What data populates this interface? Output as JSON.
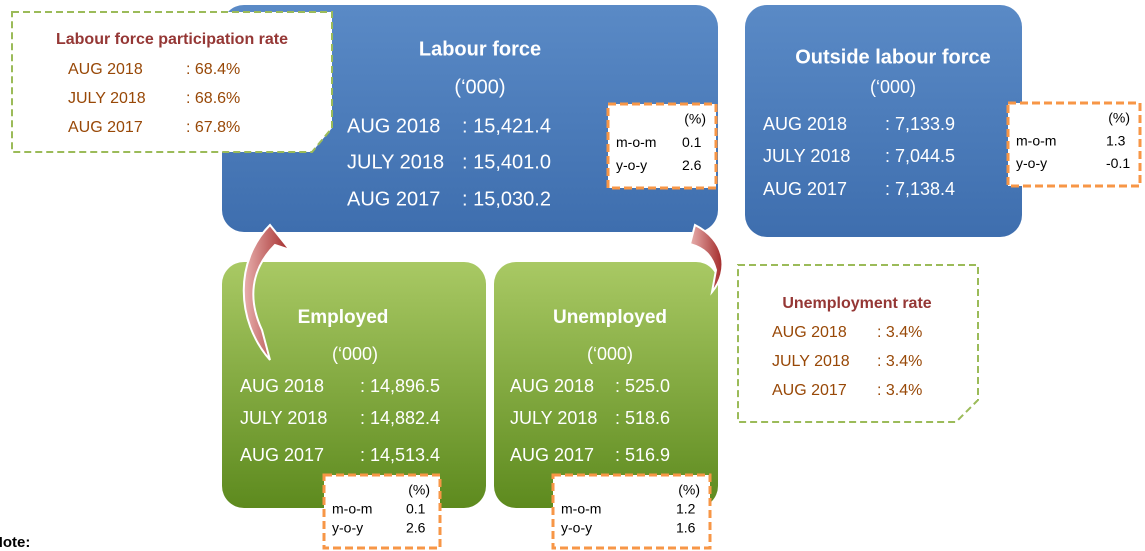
{
  "labour_force": {
    "title": "Labour force",
    "unit": "(‘000)",
    "rows": [
      {
        "period": "AUG 2018",
        "value": ": 15,421.4"
      },
      {
        "period": "JULY 2018",
        "value": ": 15,401.0"
      },
      {
        "period": "AUG 2017",
        "value": ": 15,030.2"
      }
    ],
    "change": {
      "unit": "(%)",
      "rows": [
        {
          "label": "m-o-m",
          "value": "0.1"
        },
        {
          "label": "y-o-y",
          "value": "2.6"
        }
      ]
    }
  },
  "outside_labour_force": {
    "title": "Outside labour force",
    "unit": "(‘000)",
    "rows": [
      {
        "period": "AUG 2018",
        "value": ": 7,133.9"
      },
      {
        "period": "JULY 2018",
        "value": ": 7,044.5"
      },
      {
        "period": "AUG 2017",
        "value": ": 7,138.4"
      }
    ],
    "change": {
      "unit": "(%)",
      "rows": [
        {
          "label": "m-o-m",
          "value": "1.3"
        },
        {
          "label": "y-o-y",
          "value": "-0.1"
        }
      ]
    }
  },
  "employed": {
    "title": "Employed",
    "unit": "(‘000)",
    "rows": [
      {
        "period": "AUG 2018",
        "value": ": 14,896.5"
      },
      {
        "period": "JULY 2018",
        "value": ": 14,882.4"
      },
      {
        "period": "AUG 2017",
        "value": ": 14,513.4"
      }
    ],
    "change": {
      "unit": "(%)",
      "rows": [
        {
          "label": "m-o-m",
          "value": "0.1"
        },
        {
          "label": "y-o-y",
          "value": "2.6"
        }
      ]
    }
  },
  "unemployed": {
    "title": "Unemployed",
    "unit": "(‘000)",
    "rows": [
      {
        "period": "AUG 2018",
        "value": ": 525.0"
      },
      {
        "period": "JULY 2018",
        "value": ": 518.6"
      },
      {
        "period": "AUG 2017",
        "value": ": 516.9"
      }
    ],
    "change": {
      "unit": "(%)",
      "rows": [
        {
          "label": "m-o-m",
          "value": "1.2"
        },
        {
          "label": "y-o-y",
          "value": "1.6"
        }
      ]
    }
  },
  "participation_rate": {
    "title": "Labour force participation rate",
    "rows": [
      {
        "period": "AUG 2018",
        "value": ": 68.4%"
      },
      {
        "period": "JULY 2018",
        "value": ": 68.6%"
      },
      {
        "period": "AUG 2017",
        "value": ": 67.8%"
      }
    ]
  },
  "unemployment_rate": {
    "title": "Unemployment rate",
    "rows": [
      {
        "period": "AUG 2018",
        "value": ": 3.4%"
      },
      {
        "period": "JULY 2018",
        "value": ": 3.4%"
      },
      {
        "period": "AUG 2017",
        "value": ": 3.4%"
      }
    ]
  },
  "note": "Note:"
}
